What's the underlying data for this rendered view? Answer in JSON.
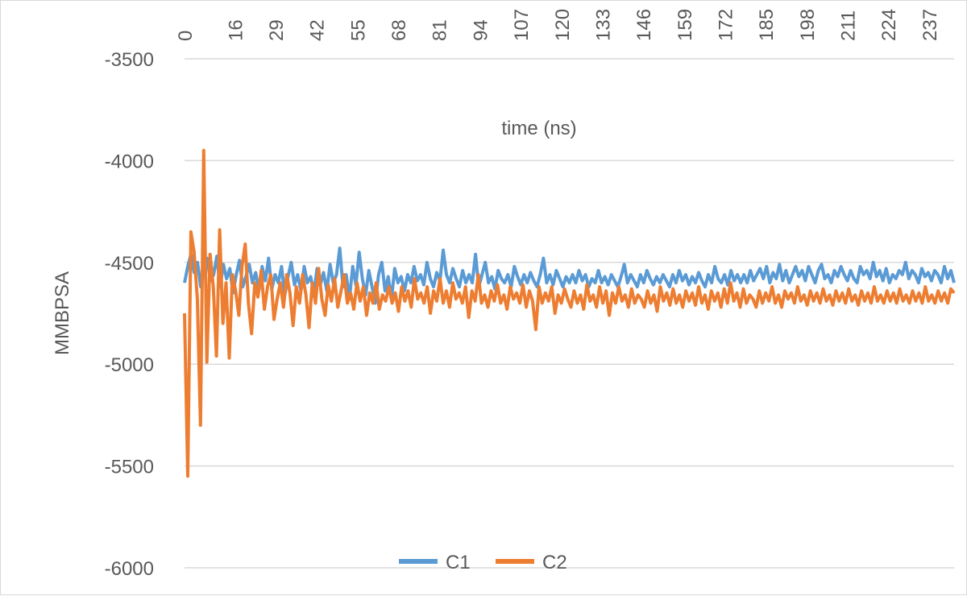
{
  "chart_data": {
    "type": "line",
    "title": "",
    "xlabel": "time (ns)",
    "ylabel": "MMBPSA",
    "x_axis_position": "top",
    "xlim": [
      0,
      245
    ],
    "ylim": [
      -6000,
      -3500
    ],
    "y_ticks": [
      -3500,
      -4000,
      -4500,
      -5000,
      -5500,
      -6000
    ],
    "x_ticks": [
      0,
      16,
      29,
      42,
      55,
      68,
      81,
      94,
      107,
      120,
      133,
      146,
      159,
      172,
      185,
      198,
      211,
      224,
      237
    ],
    "grid": "horizontal",
    "legend_position": "bottom-center",
    "series": [
      {
        "name": "C1",
        "color": "#5B9BD5",
        "values": [
          -4600,
          -4520,
          -4460,
          -4550,
          -4500,
          -4620,
          -4540,
          -4480,
          -4590,
          -4560,
          -4470,
          -4620,
          -4510,
          -4580,
          -4530,
          -4650,
          -4560,
          -4490,
          -4620,
          -4570,
          -4510,
          -4600,
          -4550,
          -4640,
          -4520,
          -4590,
          -4480,
          -4630,
          -4560,
          -4600,
          -4520,
          -4660,
          -4570,
          -4500,
          -4610,
          -4560,
          -4640,
          -4520,
          -4600,
          -4570,
          -4650,
          -4530,
          -4610,
          -4550,
          -4640,
          -4510,
          -4600,
          -4560,
          -4430,
          -4620,
          -4560,
          -4680,
          -4520,
          -4610,
          -4450,
          -4580,
          -4660,
          -4540,
          -4620,
          -4700,
          -4560,
          -4500,
          -4640,
          -4570,
          -4680,
          -4530,
          -4600,
          -4570,
          -4640,
          -4560,
          -4600,
          -4520,
          -4590,
          -4560,
          -4610,
          -4500,
          -4580,
          -4620,
          -4550,
          -4590,
          -4440,
          -4560,
          -4600,
          -4530,
          -4580,
          -4620,
          -4540,
          -4600,
          -4560,
          -4600,
          -4460,
          -4620,
          -4560,
          -4500,
          -4600,
          -4570,
          -4630,
          -4540,
          -4580,
          -4600,
          -4560,
          -4620,
          -4520,
          -4570,
          -4610,
          -4560,
          -4600,
          -4550,
          -4590,
          -4620,
          -4560,
          -4480,
          -4600,
          -4560,
          -4610,
          -4540,
          -4580,
          -4620,
          -4570,
          -4600,
          -4560,
          -4600,
          -4540,
          -4590,
          -4560,
          -4620,
          -4580,
          -4600,
          -4540,
          -4600,
          -4570,
          -4610,
          -4560,
          -4590,
          -4620,
          -4570,
          -4510,
          -4600,
          -4560,
          -4590,
          -4620,
          -4560,
          -4600,
          -4540,
          -4580,
          -4610,
          -4570,
          -4600,
          -4560,
          -4590,
          -4620,
          -4560,
          -4600,
          -4540,
          -4590,
          -4560,
          -4610,
          -4570,
          -4600,
          -4550,
          -4590,
          -4620,
          -4560,
          -4600,
          -4520,
          -4580,
          -4600,
          -4560,
          -4610,
          -4540,
          -4590,
          -4560,
          -4600,
          -4560,
          -4600,
          -4540,
          -4590,
          -4560,
          -4530,
          -4580,
          -4520,
          -4600,
          -4550,
          -4580,
          -4510,
          -4590,
          -4540,
          -4600,
          -4560,
          -4520,
          -4570,
          -4540,
          -4590,
          -4520,
          -4560,
          -4600,
          -4540,
          -4510,
          -4580,
          -4560,
          -4600,
          -4540,
          -4570,
          -4520,
          -4560,
          -4590,
          -4540,
          -4580,
          -4600,
          -4520,
          -4560,
          -4540,
          -4580,
          -4500,
          -4570,
          -4540,
          -4590,
          -4530,
          -4600,
          -4560,
          -4580,
          -4540,
          -4560,
          -4500,
          -4580,
          -4540,
          -4560,
          -4600,
          -4530,
          -4570,
          -4550,
          -4590,
          -4540,
          -4560,
          -4600,
          -4520,
          -4580,
          -4540,
          -4600
        ],
        "values_note_unused": ""
      },
      {
        "name": "C2",
        "color": "#ED7D31",
        "values": [
          -4750,
          -5550,
          -4350,
          -4450,
          -4680,
          -5300,
          -3950,
          -4990,
          -4460,
          -4620,
          -4960,
          -4340,
          -4800,
          -4600,
          -4970,
          -4560,
          -4640,
          -4760,
          -4520,
          -4410,
          -4700,
          -4850,
          -4600,
          -4670,
          -4540,
          -4730,
          -4620,
          -4560,
          -4780,
          -4680,
          -4600,
          -4720,
          -4560,
          -4650,
          -4810,
          -4620,
          -4700,
          -4560,
          -4660,
          -4820,
          -4600,
          -4700,
          -4530,
          -4680,
          -4760,
          -4610,
          -4690,
          -4580,
          -4720,
          -4640,
          -4560,
          -4700,
          -4650,
          -4730,
          -4600,
          -4690,
          -4620,
          -4760,
          -4650,
          -4700,
          -4600,
          -4730,
          -4660,
          -4690,
          -4620,
          -4700,
          -4650,
          -4740,
          -4620,
          -4690,
          -4640,
          -4720,
          -4580,
          -4680,
          -4650,
          -4700,
          -4620,
          -4750,
          -4640,
          -4690,
          -4580,
          -4700,
          -4640,
          -4720,
          -4600,
          -4680,
          -4650,
          -4700,
          -4620,
          -4770,
          -4640,
          -4690,
          -4560,
          -4700,
          -4660,
          -4720,
          -4640,
          -4690,
          -4610,
          -4700,
          -4660,
          -4730,
          -4620,
          -4680,
          -4650,
          -4700,
          -4610,
          -4720,
          -4640,
          -4690,
          -4830,
          -4620,
          -4700,
          -4650,
          -4690,
          -4620,
          -4750,
          -4660,
          -4700,
          -4630,
          -4680,
          -4720,
          -4640,
          -4700,
          -4660,
          -4730,
          -4610,
          -4690,
          -4660,
          -4720,
          -4620,
          -4700,
          -4640,
          -4760,
          -4650,
          -4700,
          -4620,
          -4690,
          -4660,
          -4720,
          -4630,
          -4700,
          -4660,
          -4680,
          -4720,
          -4640,
          -4700,
          -4660,
          -4740,
          -4620,
          -4690,
          -4650,
          -4710,
          -4630,
          -4700,
          -4660,
          -4720,
          -4640,
          -4690,
          -4650,
          -4710,
          -4620,
          -4700,
          -4660,
          -4730,
          -4640,
          -4690,
          -4650,
          -4720,
          -4630,
          -4700,
          -4600,
          -4690,
          -4650,
          -4720,
          -4630,
          -4700,
          -4660,
          -4680,
          -4720,
          -4640,
          -4700,
          -4650,
          -4690,
          -4620,
          -4700,
          -4660,
          -4720,
          -4640,
          -4680,
          -4650,
          -4700,
          -4620,
          -4690,
          -4660,
          -4710,
          -4640,
          -4690,
          -4650,
          -4700,
          -4630,
          -4690,
          -4660,
          -4710,
          -4640,
          -4690,
          -4650,
          -4700,
          -4630,
          -4690,
          -4660,
          -4710,
          -4640,
          -4690,
          -4650,
          -4700,
          -4620,
          -4690,
          -4660,
          -4700,
          -4640,
          -4690,
          -4650,
          -4700,
          -4630,
          -4690,
          -4660,
          -4700,
          -4640,
          -4690,
          -4650,
          -4700,
          -4620,
          -4690,
          -4660,
          -4700,
          -4640,
          -4690,
          -4650,
          -4700,
          -4630,
          -4650
        ]
      }
    ]
  }
}
